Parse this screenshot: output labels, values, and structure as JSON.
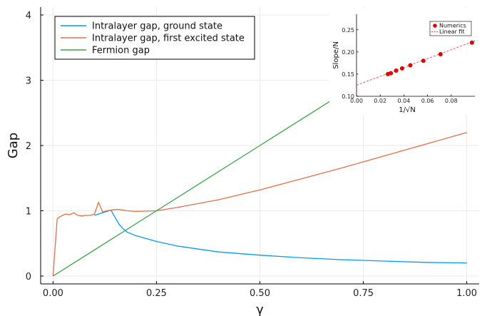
{
  "chart_data": [
    {
      "type": "line",
      "xlabel": "γ",
      "ylabel": "Gap",
      "xlim": [
        -0.03,
        1.03
      ],
      "ylim": [
        -0.12,
        4.12
      ],
      "xticks": [
        0.0,
        0.25,
        0.5,
        0.75,
        1.0
      ],
      "xtick_labels": [
        "0.00",
        "0.25",
        "0.50",
        "0.75",
        "1.00"
      ],
      "yticks": [
        0,
        1,
        2,
        3,
        4
      ],
      "ytick_labels": [
        "0",
        "1",
        "2",
        "3",
        "4"
      ],
      "grid": true,
      "legend": "top-left",
      "series": [
        {
          "name": "Intralayer gap, ground state",
          "color": "#009AFA",
          "x": [
            0.1,
            0.11,
            0.12,
            0.13,
            0.14,
            0.15,
            0.16,
            0.17,
            0.18,
            0.2,
            0.25,
            0.3,
            0.4,
            0.5,
            0.6,
            0.7,
            0.8,
            0.9,
            1.0
          ],
          "y": [
            0.93,
            0.95,
            0.97,
            0.99,
            1.01,
            0.9,
            0.79,
            0.72,
            0.67,
            0.62,
            0.53,
            0.46,
            0.37,
            0.32,
            0.28,
            0.25,
            0.23,
            0.21,
            0.2
          ]
        },
        {
          "name": "Intralayer gap, first excited state",
          "color": "#E26F46",
          "x": [
            0.0,
            0.01,
            0.02,
            0.03,
            0.04,
            0.05,
            0.06,
            0.07,
            0.08,
            0.09,
            0.1,
            0.11,
            0.12,
            0.13,
            0.14,
            0.15,
            0.16,
            0.17,
            0.18,
            0.2,
            0.25,
            0.3,
            0.4,
            0.5,
            0.6,
            0.7,
            0.8,
            0.9,
            1.0
          ],
          "y": [
            0.0,
            0.88,
            0.92,
            0.95,
            0.94,
            0.97,
            0.93,
            0.92,
            0.93,
            0.93,
            0.95,
            1.13,
            0.98,
            1.0,
            1.01,
            1.02,
            1.02,
            1.01,
            1.0,
            0.99,
            1.0,
            1.05,
            1.17,
            1.32,
            1.49,
            1.66,
            1.84,
            2.02,
            2.2
          ]
        },
        {
          "name": "Fermion gap",
          "color": "#3DA44D",
          "x": [
            0.0,
            0.25,
            0.5,
            0.675
          ],
          "y": [
            0.0,
            1.0,
            2.0,
            2.7
          ]
        }
      ]
    },
    {
      "type": "scatter",
      "xlabel": "1/√N",
      "ylabel": "Slope/N",
      "xlim": [
        0.0,
        0.1
      ],
      "ylim": [
        0.1,
        0.285
      ],
      "xticks": [
        0.0,
        0.02,
        0.04,
        0.06,
        0.08
      ],
      "xtick_labels": [
        "0.00",
        "0.02",
        "0.04",
        "0.06",
        "0.08"
      ],
      "yticks": [
        0.1,
        0.15,
        0.2,
        0.25
      ],
      "ytick_labels": [
        "0.10",
        "0.15",
        "0.20",
        "0.25"
      ],
      "legend": "top-right",
      "series": [
        {
          "name": "Numerics",
          "color": "#E00000",
          "x": [
            0.0265,
            0.029,
            0.0335,
            0.0385,
            0.0455,
            0.0565,
            0.071,
            0.0975
          ],
          "y": [
            0.15,
            0.152,
            0.158,
            0.163,
            0.17,
            0.18,
            0.195,
            0.221
          ]
        },
        {
          "name": "Linear fit",
          "color": "#E05050",
          "x": [
            0.0,
            0.1
          ],
          "y": [
            0.125,
            0.225
          ]
        }
      ]
    }
  ]
}
